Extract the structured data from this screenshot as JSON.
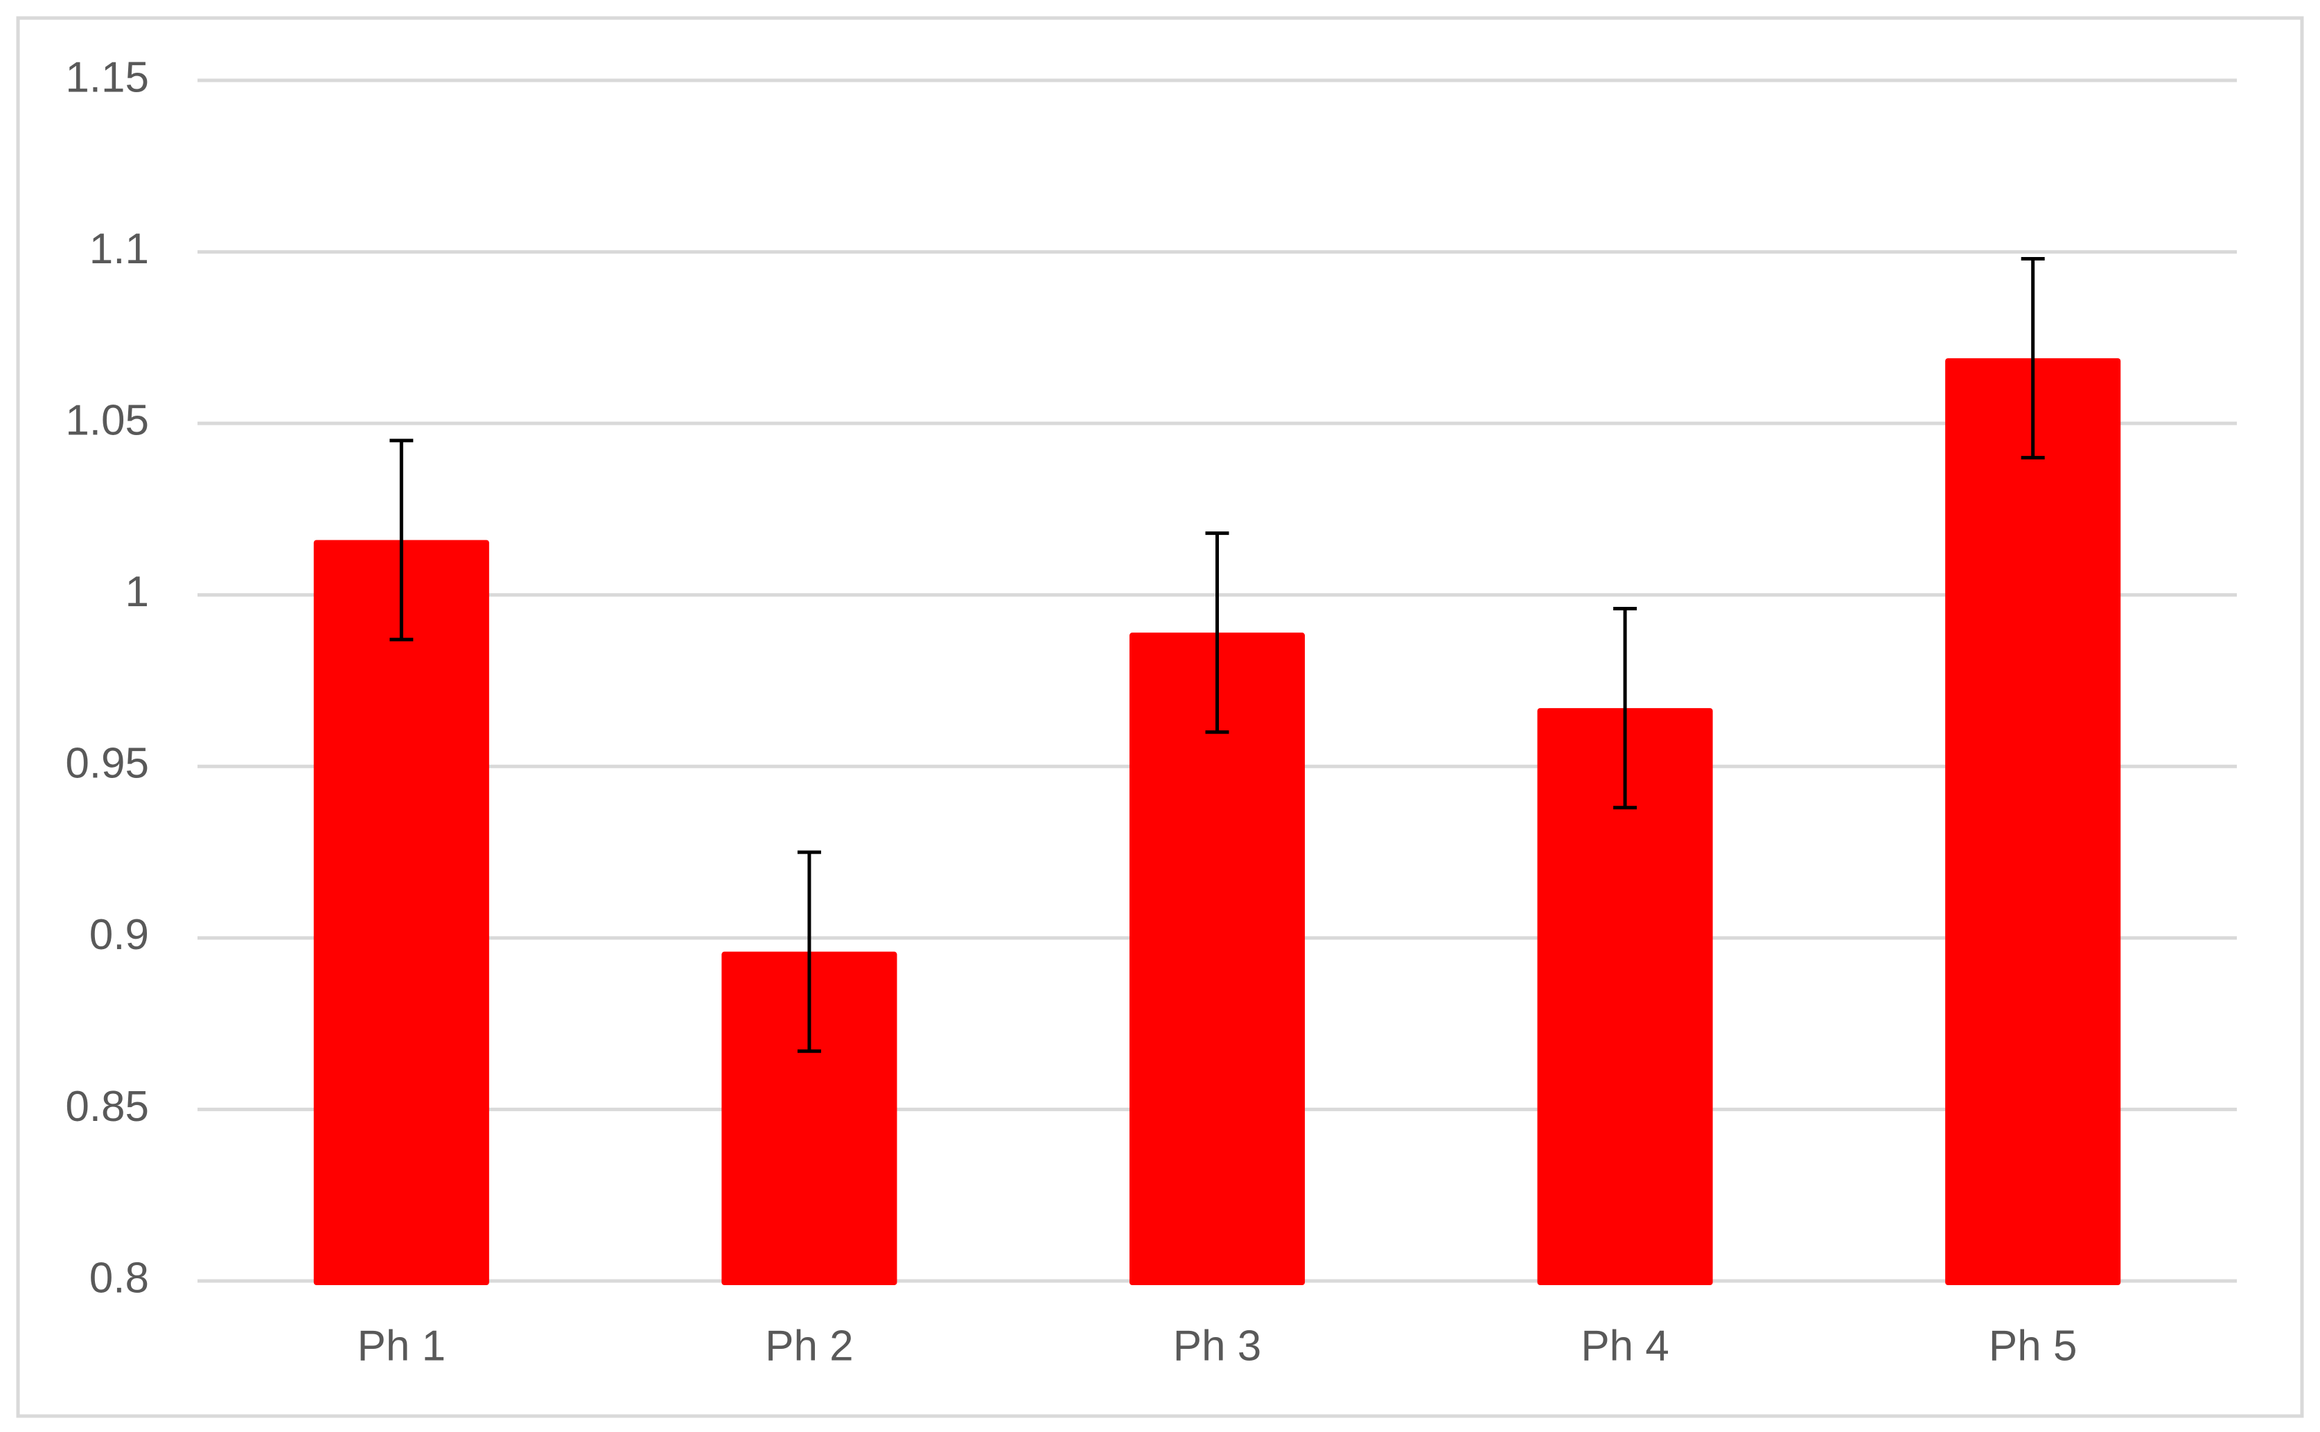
{
  "chart_data": {
    "type": "bar",
    "categories": [
      "Ph 1",
      "Ph 2",
      "Ph 3",
      "Ph 4",
      "Ph 5"
    ],
    "values": [
      1.016,
      0.896,
      0.989,
      0.967,
      1.069
    ],
    "errors": [
      0.029,
      0.029,
      0.029,
      0.029,
      0.029
    ],
    "color": "#ff0000",
    "ylim": [
      0.8,
      1.15
    ],
    "yticks": [
      0.8,
      0.85,
      0.9,
      0.95,
      1,
      1.05,
      1.1,
      1.15
    ],
    "grid": true
  }
}
